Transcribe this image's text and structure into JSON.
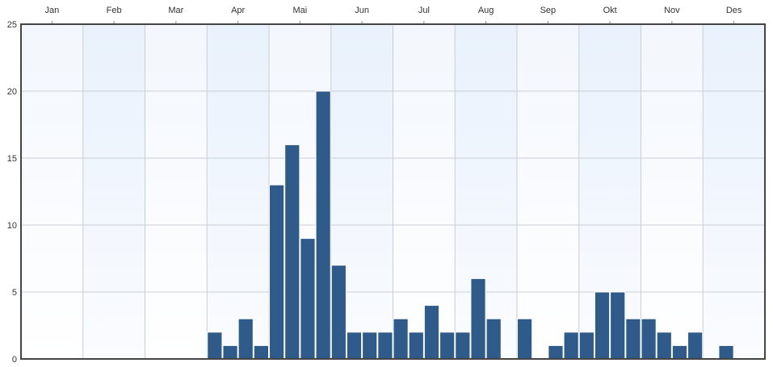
{
  "chart_data": {
    "type": "bar",
    "months": [
      "Jan",
      "Feb",
      "Mar",
      "Apr",
      "Mai",
      "Jun",
      "Jul",
      "Aug",
      "Sep",
      "Okt",
      "Nov",
      "Des"
    ],
    "y_ticks": [
      "0",
      "5",
      "10",
      "15",
      "20",
      "25"
    ],
    "ylim": [
      0,
      25
    ],
    "x_axis_position": "top",
    "grid": true,
    "bars_per_month": 4,
    "values": [
      0,
      0,
      0,
      0,
      0,
      0,
      0,
      0,
      0,
      0,
      0,
      0,
      2,
      1,
      3,
      1,
      13,
      16,
      9,
      20,
      7,
      2,
      2,
      2,
      3,
      2,
      4,
      2,
      2,
      6,
      3,
      0,
      3,
      0,
      1,
      2,
      2,
      5,
      5,
      3,
      3,
      2,
      1,
      2,
      0,
      1,
      0,
      0
    ],
    "colors": {
      "bar": "#2e5b8a",
      "plot_bg_light": "#fdfeff",
      "plot_bg_band": "#eef4fd",
      "grid": "#c9ced6",
      "frame": "#444444"
    }
  }
}
